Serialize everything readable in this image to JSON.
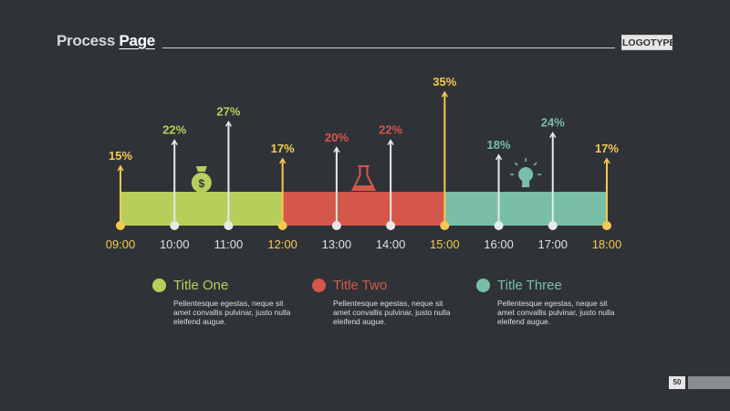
{
  "header": {
    "title_main": "Process",
    "title_accent": "Page",
    "logo": "LOGOTYPE"
  },
  "colors": {
    "background": "#2f3338",
    "green": "#b6cf5b",
    "red": "#d4574a",
    "teal": "#79bea7",
    "marker_yellow": "#f4c94f",
    "marker_white": "#e8e8e8"
  },
  "chart_data": {
    "type": "timeline",
    "x_labels": [
      "09:00",
      "10:00",
      "11:00",
      "12:00",
      "13:00",
      "14:00",
      "15:00",
      "16:00",
      "17:00",
      "18:00"
    ],
    "points": [
      {
        "time": "09:00",
        "value": 15,
        "label": "15%",
        "label_color": "#f4c94f"
      },
      {
        "time": "10:00",
        "value": 22,
        "label": "22%",
        "label_color": "#b6cf5b"
      },
      {
        "time": "11:00",
        "value": 27,
        "label": "27%",
        "label_color": "#b6cf5b"
      },
      {
        "time": "12:00",
        "value": 17,
        "label": "17%",
        "label_color": "#f4c94f"
      },
      {
        "time": "13:00",
        "value": 20,
        "label": "20%",
        "label_color": "#d4574a"
      },
      {
        "time": "14:00",
        "value": 22,
        "label": "22%",
        "label_color": "#d4574a"
      },
      {
        "time": "15:00",
        "value": 35,
        "label": "35%",
        "label_color": "#f4c94f"
      },
      {
        "time": "16:00",
        "value": 18,
        "label": "18%",
        "label_color": "#79bea7"
      },
      {
        "time": "17:00",
        "value": 24,
        "label": "24%",
        "label_color": "#79bea7"
      },
      {
        "time": "18:00",
        "value": 17,
        "label": "17%",
        "label_color": "#f4c94f"
      }
    ],
    "segments": [
      {
        "name": "Title One",
        "start": "09:00",
        "end": "12:00",
        "color": "#b6cf5b",
        "icon": "money-bag-icon"
      },
      {
        "name": "Title Two",
        "start": "12:00",
        "end": "15:00",
        "color": "#d4574a",
        "icon": "flask-icon"
      },
      {
        "name": "Title Three",
        "start": "15:00",
        "end": "18:00",
        "color": "#79bea7",
        "icon": "lightbulb-icon"
      }
    ]
  },
  "legend": [
    {
      "name": "Title One",
      "color": "#b6cf5b",
      "desc": "Pellentesque egestas, neque sit amet convallis pulvinar, justo nulla eleifend augue."
    },
    {
      "name": "Title Two",
      "color": "#d4574a",
      "desc": "Pellentesque egestas, neque sit amet convallis pulvinar, justo nulla eleifend augue."
    },
    {
      "name": "Title Three",
      "color": "#79bea7",
      "desc": "Pellentesque egestas, neque sit amet convallis pulvinar, justo nulla eleifend augue."
    }
  ],
  "page_number": "50"
}
